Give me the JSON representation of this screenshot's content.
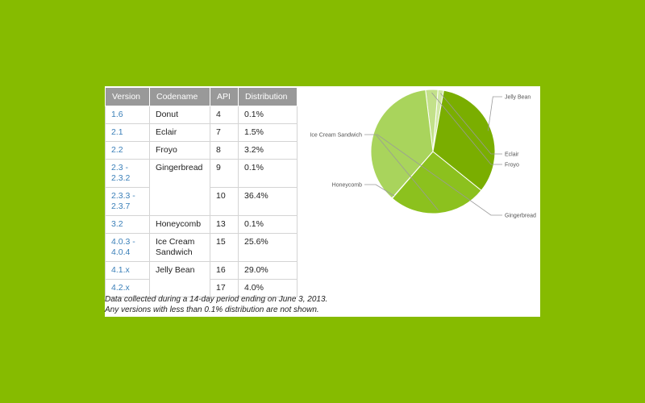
{
  "table": {
    "headers": [
      "Version",
      "Codename",
      "API",
      "Distribution"
    ],
    "rows": [
      {
        "version": "1.6",
        "codename": "Donut",
        "api": "4",
        "dist": "0.1%"
      },
      {
        "version": "2.1",
        "codename": "Eclair",
        "api": "7",
        "dist": "1.5%"
      },
      {
        "version": "2.2",
        "codename": "Froyo",
        "api": "8",
        "dist": "3.2%"
      },
      {
        "version": "2.3 - 2.3.2",
        "codename": "Gingerbread",
        "api": "9",
        "dist": "0.1%"
      },
      {
        "version": "2.3.3 - 2.3.7",
        "codename": "",
        "api": "10",
        "dist": "36.4%"
      },
      {
        "version": "3.2",
        "codename": "Honeycomb",
        "api": "13",
        "dist": "0.1%"
      },
      {
        "version": "4.0.3 - 4.0.4",
        "codename": "Ice Cream Sandwich",
        "api": "15",
        "dist": "25.6%"
      },
      {
        "version": "4.1.x",
        "codename": "Jelly Bean",
        "api": "16",
        "dist": "29.0%"
      },
      {
        "version": "4.2.x",
        "codename": "",
        "api": "17",
        "dist": "4.0%"
      }
    ]
  },
  "footnote": {
    "line1": "Data collected during a 14-day period ending on June 3, 2013.",
    "line2": "Any versions with less than 0.1% distribution are not shown."
  },
  "colors": {
    "background": "#86bb00",
    "header": "#999999",
    "link": "#3a7fb8"
  },
  "chart_data": {
    "type": "pie",
    "slices": [
      {
        "label": "Eclair",
        "value": 1.5,
        "color": "#d2e9a6"
      },
      {
        "label": "Froyo",
        "value": 3.2,
        "color": "#c3e18a"
      },
      {
        "label": "Gingerbread",
        "value": 36.6,
        "color": "#a9d45c"
      },
      {
        "label": "Honeycomb",
        "value": 0.1,
        "color": "#96c83c"
      },
      {
        "label": "Ice Cream Sandwich",
        "value": 25.6,
        "color": "#8cc11e"
      },
      {
        "label": "Jelly Bean",
        "value": 33.0,
        "color": "#7aae00"
      }
    ]
  }
}
